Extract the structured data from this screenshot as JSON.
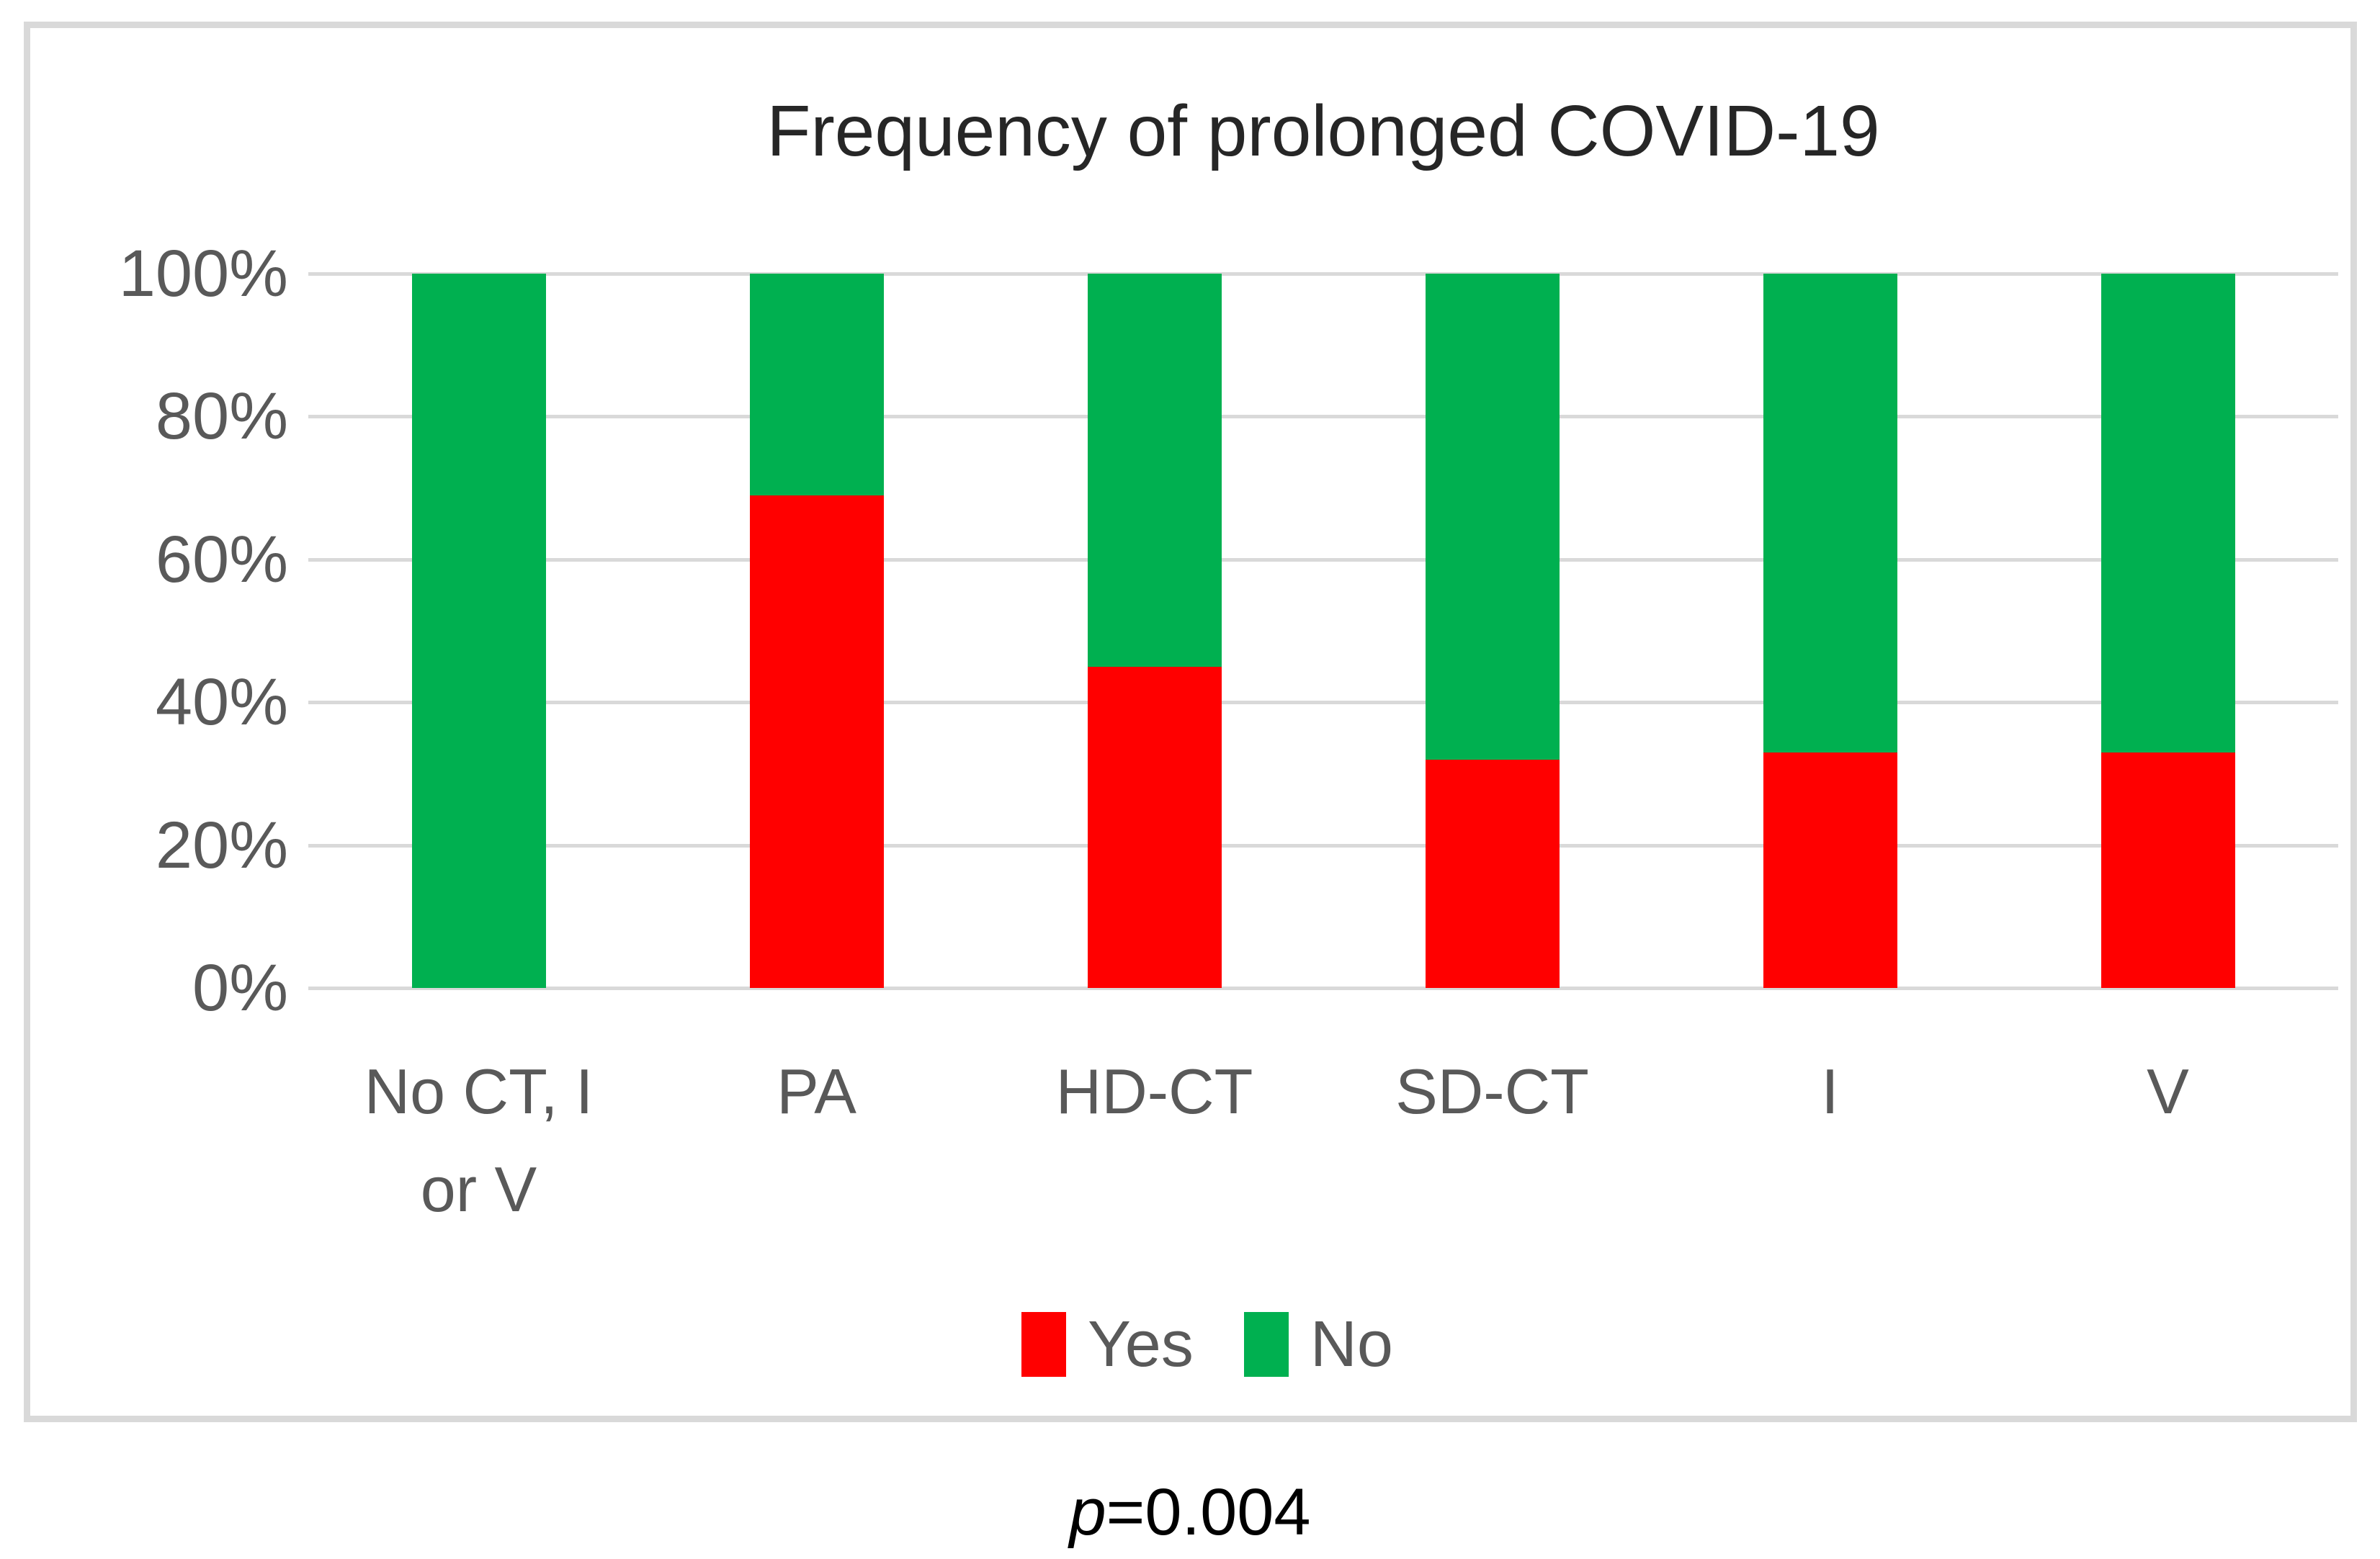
{
  "chart_data": {
    "type": "bar",
    "variant": "100-percent-stacked-column",
    "title": "Frequency of prolonged COVID-19",
    "categories": [
      "No CT, I or V",
      "PA",
      "HD-CT",
      "SD-CT",
      "I",
      "V"
    ],
    "category_label_lines": [
      [
        "No CT, I",
        "or V"
      ],
      [
        "PA"
      ],
      [
        "HD-CT"
      ],
      [
        "SD-CT"
      ],
      [
        "I"
      ],
      [
        "V"
      ]
    ],
    "series": [
      {
        "name": "Yes",
        "color": "#FF0000",
        "values_pct": [
          0,
          69,
          45,
          32,
          33,
          33
        ]
      },
      {
        "name": "No",
        "color": "#00B050",
        "values_pct": [
          100,
          31,
          55,
          68,
          67,
          67
        ]
      }
    ],
    "y_axis": {
      "ticks": [
        "100%",
        "80%",
        "60%",
        "40%",
        "20%",
        "0%"
      ],
      "min": 0,
      "max": 100,
      "unit": "%"
    },
    "grid": {
      "visible": true,
      "color": "#D9D9D9"
    },
    "legend": {
      "position": "bottom",
      "entries": [
        "Yes",
        "No"
      ]
    },
    "annotation": {
      "italic": "p",
      "rest": "=0.004",
      "full": "p=0.004"
    }
  },
  "colors": {
    "yes": "#FF0000",
    "no": "#00B050",
    "grid": "#D9D9D9",
    "frame_border": "#D9D9D9",
    "axis_text": "#595959",
    "title_text": "#262626",
    "annotation_text": "#000000",
    "background": "#FFFFFF"
  }
}
